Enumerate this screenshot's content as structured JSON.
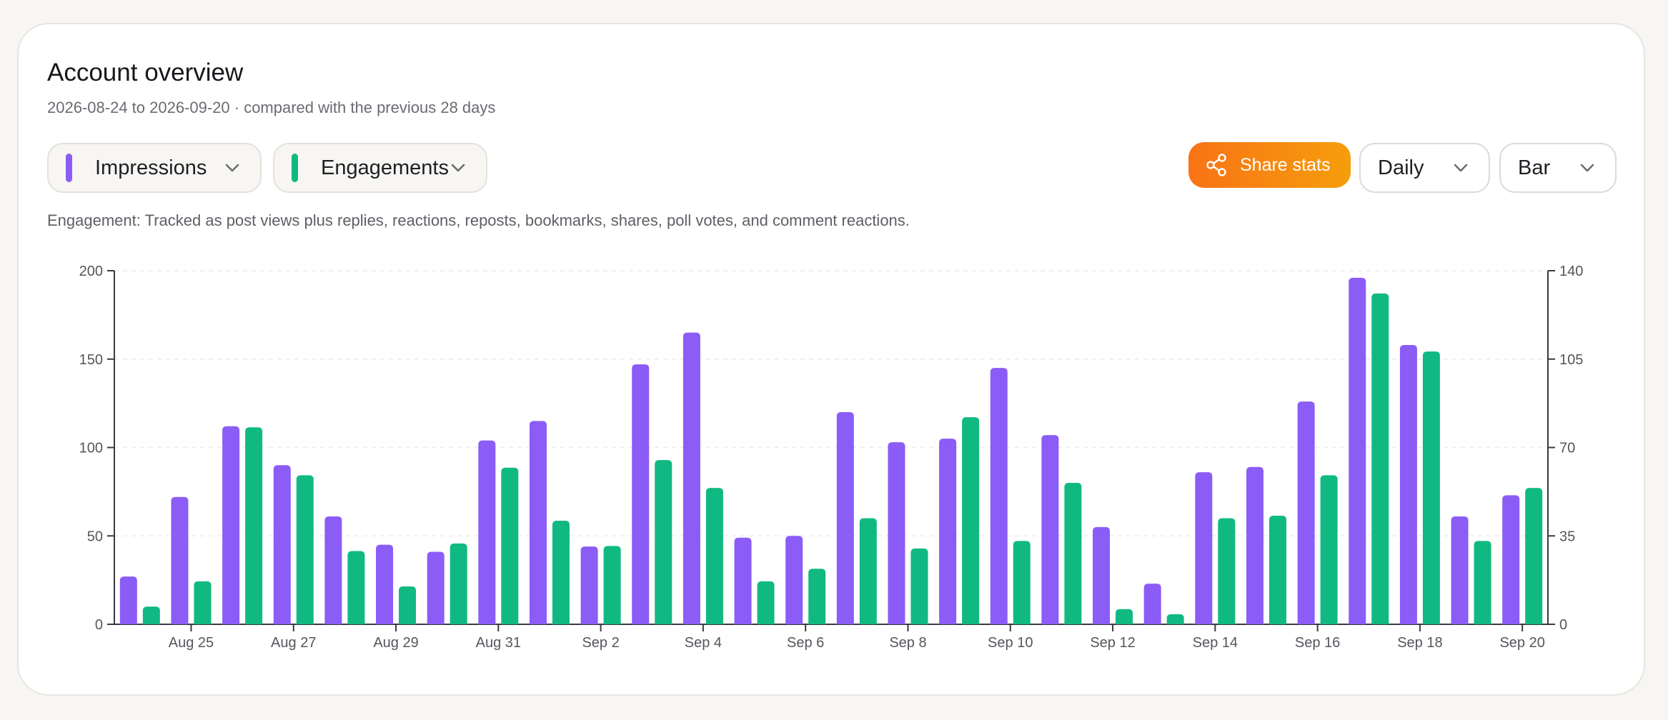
{
  "header": {
    "title": "Account overview",
    "subtitle": "2026-08-24 to 2026-09-20 · compared with the previous 28 days"
  },
  "controls": {
    "metric1": {
      "label": "Impressions",
      "color": "#8b5cf6"
    },
    "metric2": {
      "label": "Engagements",
      "color": "#10b981"
    },
    "share_label": "Share stats",
    "granularity": "Daily",
    "chart_type": "Bar"
  },
  "note": "Engagement: Tracked as post views plus replies, reactions, reposts, bookmarks, shares, poll votes, and comment reactions.",
  "icons": {
    "metric_dropdown": "chevron-down-icon",
    "share": "share-icon",
    "select_dropdown": "chevron-down-icon"
  },
  "chart_data": {
    "type": "bar",
    "categories": [
      "Aug 24",
      "Aug 25",
      "Aug 26",
      "Aug 27",
      "Aug 28",
      "Aug 29",
      "Aug 30",
      "Aug 31",
      "Sep 1",
      "Sep 2",
      "Sep 3",
      "Sep 4",
      "Sep 5",
      "Sep 6",
      "Sep 7",
      "Sep 8",
      "Sep 9",
      "Sep 10",
      "Sep 11",
      "Sep 12",
      "Sep 13",
      "Sep 14",
      "Sep 15",
      "Sep 16",
      "Sep 17",
      "Sep 18",
      "Sep 19",
      "Sep 20"
    ],
    "x_tick_labels": [
      "Aug 25",
      "Aug 27",
      "Aug 29",
      "Aug 31",
      "Sep 2",
      "Sep 4",
      "Sep 6",
      "Sep 8",
      "Sep 10",
      "Sep 12",
      "Sep 14",
      "Sep 16",
      "Sep 18",
      "Sep 20"
    ],
    "series": [
      {
        "name": "Impressions",
        "axis": "left",
        "color": "#8b5cf6",
        "values": [
          27,
          72,
          112,
          90,
          61,
          45,
          41,
          104,
          115,
          44,
          147,
          165,
          49,
          50,
          120,
          103,
          105,
          145,
          107,
          55,
          23,
          86,
          89,
          126,
          196,
          158,
          61,
          73
        ]
      },
      {
        "name": "Engagements",
        "axis": "right",
        "color": "#10b981",
        "values": [
          7,
          17,
          78,
          59,
          29,
          15,
          32,
          62,
          41,
          31,
          65,
          54,
          17,
          22,
          42,
          30,
          82,
          33,
          56,
          6,
          4,
          42,
          43,
          59,
          131,
          108,
          33,
          54
        ]
      }
    ],
    "y_left": {
      "min": 0,
      "max": 200,
      "ticks": [
        0,
        50,
        100,
        150,
        200
      ]
    },
    "y_right": {
      "min": 0,
      "max": 140,
      "ticks": [
        0,
        35,
        70,
        105,
        140
      ]
    },
    "grid": true,
    "legend": "none"
  }
}
